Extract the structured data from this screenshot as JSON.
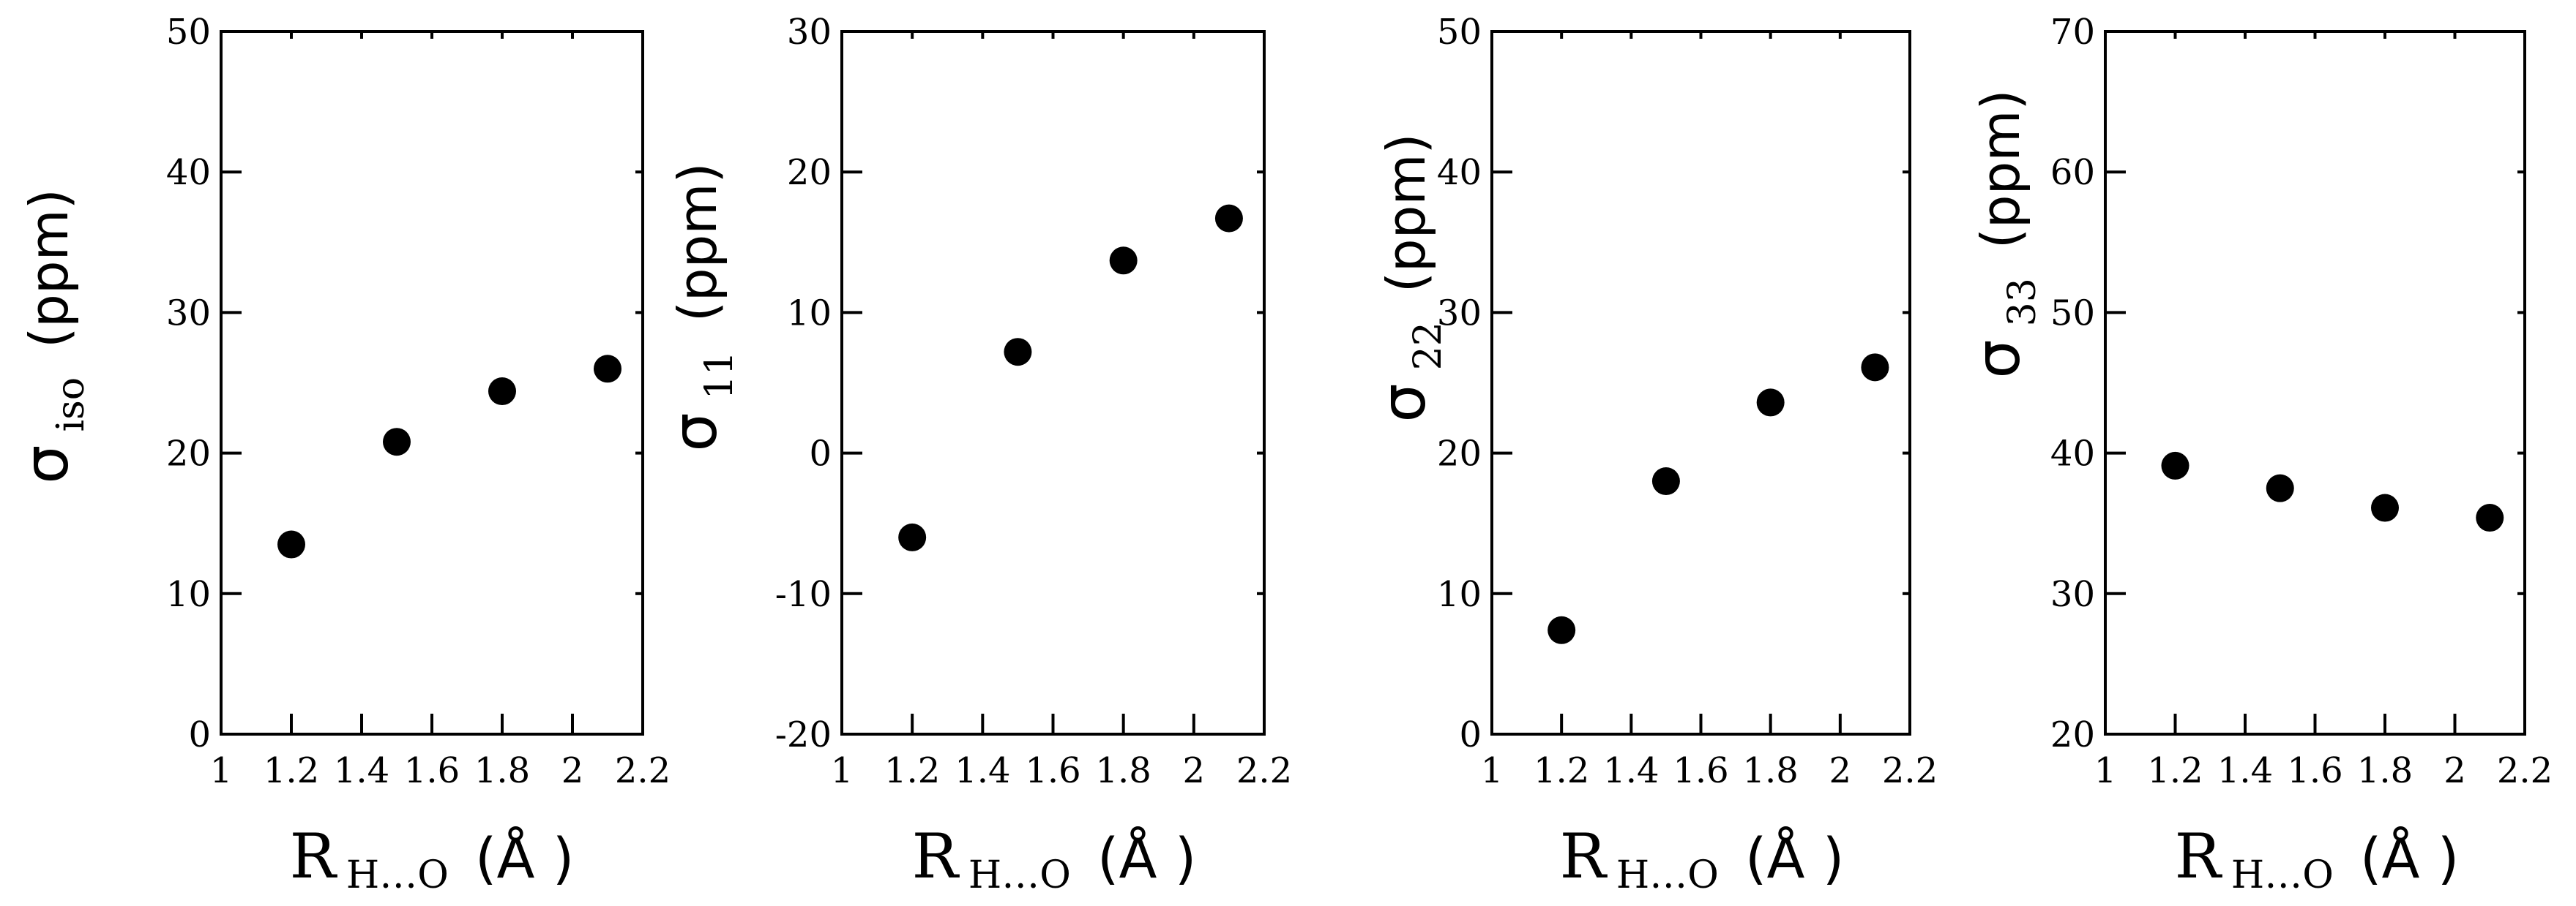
{
  "chart_data": [
    {
      "type": "scatter",
      "xlabel": {
        "main": "R",
        "sub": "H…O",
        "unit": "(Å )"
      },
      "ylabel": {
        "main": "σ",
        "sub": "iso",
        "unit": "(ppm)"
      },
      "xlim": [
        1,
        2.2
      ],
      "ylim": [
        0,
        50
      ],
      "xticks": [
        "1",
        "1.2",
        "1.4",
        "1.6",
        "1.8",
        "2",
        "2.2"
      ],
      "yticks": [
        "0",
        "10",
        "20",
        "30",
        "40",
        "50"
      ],
      "x": [
        1.2,
        1.5,
        1.8,
        2.1
      ],
      "y": [
        13.5,
        20.8,
        24.4,
        26.0
      ],
      "marker_color": "#000000"
    },
    {
      "type": "scatter",
      "xlabel": {
        "main": "R",
        "sub": "H…O",
        "unit": "(Å )"
      },
      "ylabel": {
        "main": "σ",
        "sub": "11",
        "unit": "(ppm)"
      },
      "xlim": [
        1,
        2.2
      ],
      "ylim": [
        -20,
        30
      ],
      "xticks": [
        "1",
        "1.2",
        "1.4",
        "1.6",
        "1.8",
        "2",
        "2.2"
      ],
      "yticks": [
        "-20",
        "-10",
        "0",
        "10",
        "20",
        "30"
      ],
      "x": [
        1.2,
        1.5,
        1.8,
        2.1
      ],
      "y": [
        -6.0,
        7.2,
        13.7,
        16.7
      ],
      "marker_color": "#000000"
    },
    {
      "type": "scatter",
      "xlabel": {
        "main": "R",
        "sub": "H…O",
        "unit": "(Å )"
      },
      "ylabel": {
        "main": "σ",
        "sub": "22",
        "unit": "(ppm)"
      },
      "xlim": [
        1,
        2.2
      ],
      "ylim": [
        0,
        50
      ],
      "xticks": [
        "1",
        "1.2",
        "1.4",
        "1.6",
        "1.8",
        "2",
        "2.2"
      ],
      "yticks": [
        "0",
        "10",
        "20",
        "30",
        "40",
        "50"
      ],
      "x": [
        1.2,
        1.5,
        1.8,
        2.1
      ],
      "y": [
        7.4,
        18.0,
        23.6,
        26.1
      ],
      "marker_color": "#000000"
    },
    {
      "type": "scatter",
      "xlabel": {
        "main": "R",
        "sub": "H…O",
        "unit": "(Å )"
      },
      "ylabel": {
        "main": "σ",
        "sub": "33",
        "unit": "(ppm)"
      },
      "xlim": [
        1,
        2.2
      ],
      "ylim": [
        20,
        70
      ],
      "xticks": [
        "1",
        "1.2",
        "1.4",
        "1.6",
        "1.8",
        "2",
        "2.2"
      ],
      "yticks": [
        "20",
        "30",
        "40",
        "50",
        "60",
        "70"
      ],
      "x": [
        1.2,
        1.5,
        1.8,
        2.1
      ],
      "y": [
        39.1,
        37.5,
        36.1,
        35.4
      ],
      "marker_color": "#000000"
    }
  ]
}
